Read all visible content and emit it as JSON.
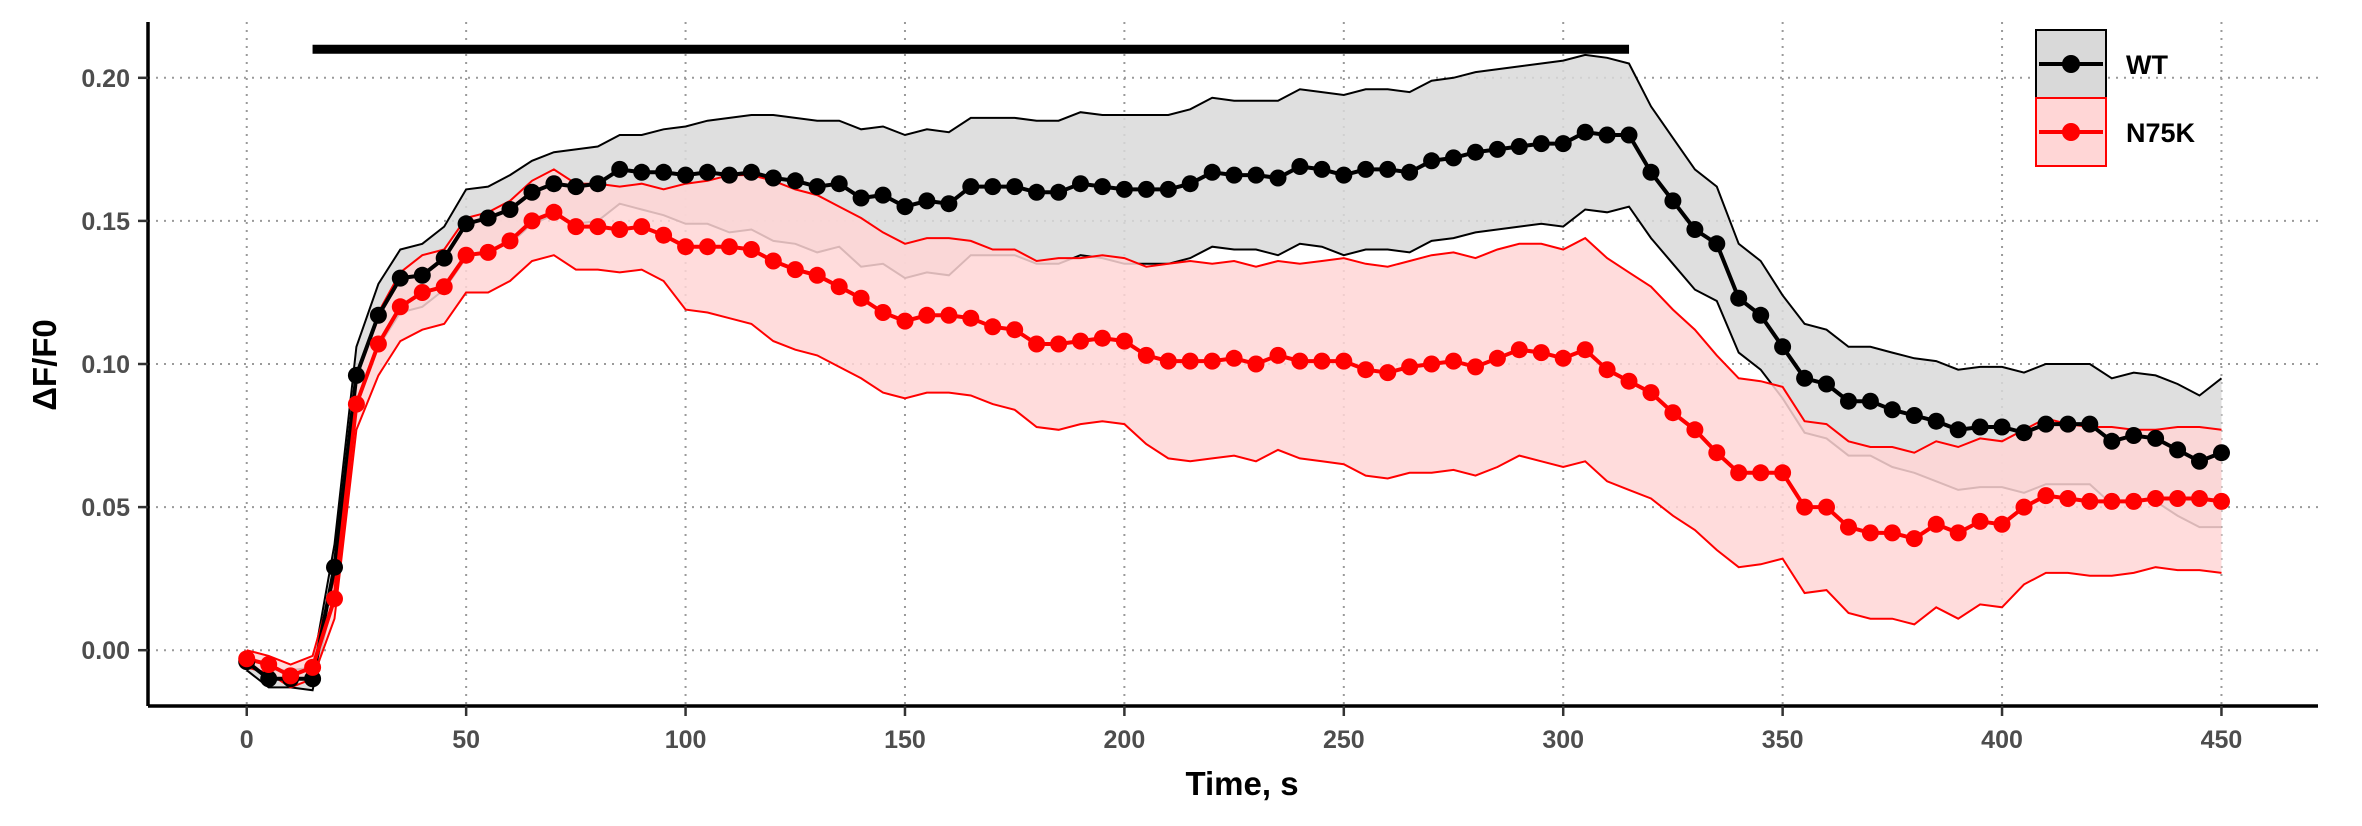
{
  "chart_data": {
    "type": "line",
    "xlabel": "Time, s",
    "ylabel": "ΔF/F0",
    "xlim": [
      -22.5,
      472
    ],
    "ylim": [
      -0.0195,
      0.2195
    ],
    "x_ticks": [
      0,
      50,
      100,
      150,
      200,
      250,
      300,
      350,
      400,
      450
    ],
    "x_tick_labels": [
      "0",
      "50",
      "100",
      "150",
      "200",
      "250",
      "300",
      "350",
      "400",
      "450"
    ],
    "y_ticks": [
      0.0,
      0.05,
      0.1,
      0.15,
      0.2
    ],
    "y_tick_labels": [
      "0.00",
      "0.05",
      "0.10",
      "0.15",
      "0.20"
    ],
    "grid": true,
    "legend_position": "top-right",
    "stimulus_bar": {
      "x_start": 15,
      "x_end": 315,
      "y": 0.21
    },
    "x": [
      0,
      5,
      10,
      15,
      20,
      25,
      30,
      35,
      40,
      45,
      50,
      55,
      60,
      65,
      70,
      75,
      80,
      85,
      90,
      95,
      100,
      105,
      110,
      115,
      120,
      125,
      130,
      135,
      140,
      145,
      150,
      155,
      160,
      165,
      170,
      175,
      180,
      185,
      190,
      195,
      200,
      205,
      210,
      215,
      220,
      225,
      230,
      235,
      240,
      245,
      250,
      255,
      260,
      265,
      270,
      275,
      280,
      285,
      290,
      295,
      300,
      305,
      310,
      315,
      320,
      325,
      330,
      335,
      340,
      345,
      350,
      355,
      360,
      365,
      370,
      375,
      380,
      385,
      390,
      395,
      400,
      405,
      410,
      415,
      420,
      425,
      430,
      435,
      440,
      445,
      450
    ],
    "series": [
      {
        "name": "WT",
        "color": "#000000",
        "band_fill": "#d9d9d9",
        "values": [
          -0.004,
          -0.01,
          -0.01,
          -0.01,
          0.029,
          0.096,
          0.117,
          0.13,
          0.131,
          0.137,
          0.149,
          0.151,
          0.154,
          0.16,
          0.163,
          0.162,
          0.163,
          0.168,
          0.167,
          0.167,
          0.166,
          0.167,
          0.166,
          0.167,
          0.165,
          0.164,
          0.162,
          0.163,
          0.158,
          0.159,
          0.155,
          0.157,
          0.156,
          0.162,
          0.162,
          0.162,
          0.16,
          0.16,
          0.163,
          0.162,
          0.161,
          0.161,
          0.161,
          0.163,
          0.167,
          0.166,
          0.166,
          0.165,
          0.169,
          0.168,
          0.166,
          0.168,
          0.168,
          0.167,
          0.171,
          0.172,
          0.174,
          0.175,
          0.176,
          0.177,
          0.177,
          0.181,
          0.18,
          0.18,
          0.167,
          0.157,
          0.147,
          0.142,
          0.123,
          0.117,
          0.106,
          0.095,
          0.093,
          0.087,
          0.087,
          0.084,
          0.082,
          0.08,
          0.077,
          0.078,
          0.078,
          0.076,
          0.079,
          0.079,
          0.079,
          0.073,
          0.075,
          0.074,
          0.07,
          0.066,
          0.069
        ],
        "upper": [
          -0.001,
          -0.007,
          -0.007,
          -0.006,
          0.037,
          0.106,
          0.128,
          0.14,
          0.142,
          0.148,
          0.161,
          0.162,
          0.166,
          0.171,
          0.174,
          0.175,
          0.176,
          0.18,
          0.18,
          0.182,
          0.183,
          0.185,
          0.186,
          0.187,
          0.187,
          0.186,
          0.185,
          0.185,
          0.182,
          0.183,
          0.18,
          0.182,
          0.181,
          0.186,
          0.186,
          0.186,
          0.185,
          0.185,
          0.188,
          0.187,
          0.187,
          0.187,
          0.187,
          0.189,
          0.193,
          0.192,
          0.192,
          0.192,
          0.196,
          0.195,
          0.194,
          0.196,
          0.196,
          0.195,
          0.199,
          0.2,
          0.202,
          0.203,
          0.204,
          0.205,
          0.206,
          0.208,
          0.207,
          0.205,
          0.19,
          0.179,
          0.168,
          0.162,
          0.142,
          0.136,
          0.124,
          0.114,
          0.112,
          0.106,
          0.106,
          0.104,
          0.102,
          0.101,
          0.098,
          0.099,
          0.099,
          0.097,
          0.1,
          0.1,
          0.1,
          0.095,
          0.097,
          0.096,
          0.093,
          0.089,
          0.095
        ],
        "lower": [
          -0.007,
          -0.013,
          -0.013,
          -0.014,
          0.021,
          0.086,
          0.106,
          0.118,
          0.12,
          0.126,
          0.137,
          0.14,
          0.142,
          0.149,
          0.152,
          0.149,
          0.15,
          0.156,
          0.154,
          0.152,
          0.149,
          0.149,
          0.146,
          0.147,
          0.143,
          0.142,
          0.139,
          0.141,
          0.134,
          0.135,
          0.13,
          0.132,
          0.131,
          0.138,
          0.138,
          0.138,
          0.135,
          0.135,
          0.138,
          0.137,
          0.135,
          0.135,
          0.135,
          0.137,
          0.141,
          0.14,
          0.14,
          0.138,
          0.142,
          0.141,
          0.138,
          0.14,
          0.14,
          0.139,
          0.143,
          0.144,
          0.146,
          0.147,
          0.148,
          0.149,
          0.148,
          0.154,
          0.153,
          0.155,
          0.144,
          0.135,
          0.126,
          0.122,
          0.104,
          0.098,
          0.088,
          0.076,
          0.074,
          0.068,
          0.068,
          0.064,
          0.062,
          0.059,
          0.056,
          0.057,
          0.057,
          0.055,
          0.058,
          0.058,
          0.058,
          0.051,
          0.053,
          0.052,
          0.047,
          0.043,
          0.043
        ]
      },
      {
        "name": "N75K",
        "color": "#ff0000",
        "band_fill": "#ffd6d6",
        "values": [
          -0.003,
          -0.005,
          -0.009,
          -0.006,
          0.018,
          0.086,
          0.107,
          0.12,
          0.125,
          0.127,
          0.138,
          0.139,
          0.143,
          0.15,
          0.153,
          0.148,
          0.148,
          0.147,
          0.148,
          0.145,
          0.141,
          0.141,
          0.141,
          0.14,
          0.136,
          0.133,
          0.131,
          0.127,
          0.123,
          0.118,
          0.115,
          0.117,
          0.117,
          0.116,
          0.113,
          0.112,
          0.107,
          0.107,
          0.108,
          0.109,
          0.108,
          0.103,
          0.101,
          0.101,
          0.101,
          0.102,
          0.1,
          0.103,
          0.101,
          0.101,
          0.101,
          0.098,
          0.097,
          0.099,
          0.1,
          0.101,
          0.099,
          0.102,
          0.105,
          0.104,
          0.102,
          0.105,
          0.098,
          0.094,
          0.09,
          0.083,
          0.077,
          0.069,
          0.062,
          0.062,
          0.062,
          0.05,
          0.05,
          0.043,
          0.041,
          0.041,
          0.039,
          0.044,
          0.041,
          0.045,
          0.044,
          0.05,
          0.054,
          0.053,
          0.052,
          0.052,
          0.052,
          0.053,
          0.053,
          0.053,
          0.052
        ],
        "upper": [
          0.0,
          -0.002,
          -0.005,
          -0.002,
          0.025,
          0.095,
          0.118,
          0.132,
          0.138,
          0.14,
          0.151,
          0.153,
          0.157,
          0.164,
          0.168,
          0.163,
          0.163,
          0.162,
          0.163,
          0.161,
          0.163,
          0.164,
          0.166,
          0.166,
          0.164,
          0.161,
          0.159,
          0.155,
          0.151,
          0.146,
          0.142,
          0.144,
          0.144,
          0.143,
          0.14,
          0.14,
          0.136,
          0.137,
          0.137,
          0.138,
          0.137,
          0.134,
          0.135,
          0.136,
          0.135,
          0.136,
          0.134,
          0.136,
          0.135,
          0.136,
          0.137,
          0.135,
          0.134,
          0.136,
          0.138,
          0.139,
          0.137,
          0.14,
          0.142,
          0.142,
          0.14,
          0.144,
          0.137,
          0.132,
          0.127,
          0.119,
          0.112,
          0.103,
          0.095,
          0.094,
          0.092,
          0.08,
          0.079,
          0.073,
          0.071,
          0.071,
          0.069,
          0.073,
          0.071,
          0.074,
          0.073,
          0.077,
          0.081,
          0.079,
          0.078,
          0.078,
          0.077,
          0.077,
          0.078,
          0.078,
          0.077
        ],
        "lower": [
          -0.006,
          -0.008,
          -0.013,
          -0.01,
          0.011,
          0.077,
          0.096,
          0.108,
          0.112,
          0.114,
          0.125,
          0.125,
          0.129,
          0.136,
          0.138,
          0.133,
          0.133,
          0.132,
          0.133,
          0.129,
          0.119,
          0.118,
          0.116,
          0.114,
          0.108,
          0.105,
          0.103,
          0.099,
          0.095,
          0.09,
          0.088,
          0.09,
          0.09,
          0.089,
          0.086,
          0.084,
          0.078,
          0.077,
          0.079,
          0.08,
          0.079,
          0.072,
          0.067,
          0.066,
          0.067,
          0.068,
          0.066,
          0.07,
          0.067,
          0.066,
          0.065,
          0.061,
          0.06,
          0.062,
          0.062,
          0.063,
          0.061,
          0.064,
          0.068,
          0.066,
          0.064,
          0.066,
          0.059,
          0.056,
          0.053,
          0.047,
          0.042,
          0.035,
          0.029,
          0.03,
          0.032,
          0.02,
          0.021,
          0.013,
          0.011,
          0.011,
          0.009,
          0.015,
          0.011,
          0.016,
          0.015,
          0.023,
          0.027,
          0.027,
          0.026,
          0.026,
          0.027,
          0.029,
          0.028,
          0.028,
          0.027
        ]
      }
    ]
  }
}
